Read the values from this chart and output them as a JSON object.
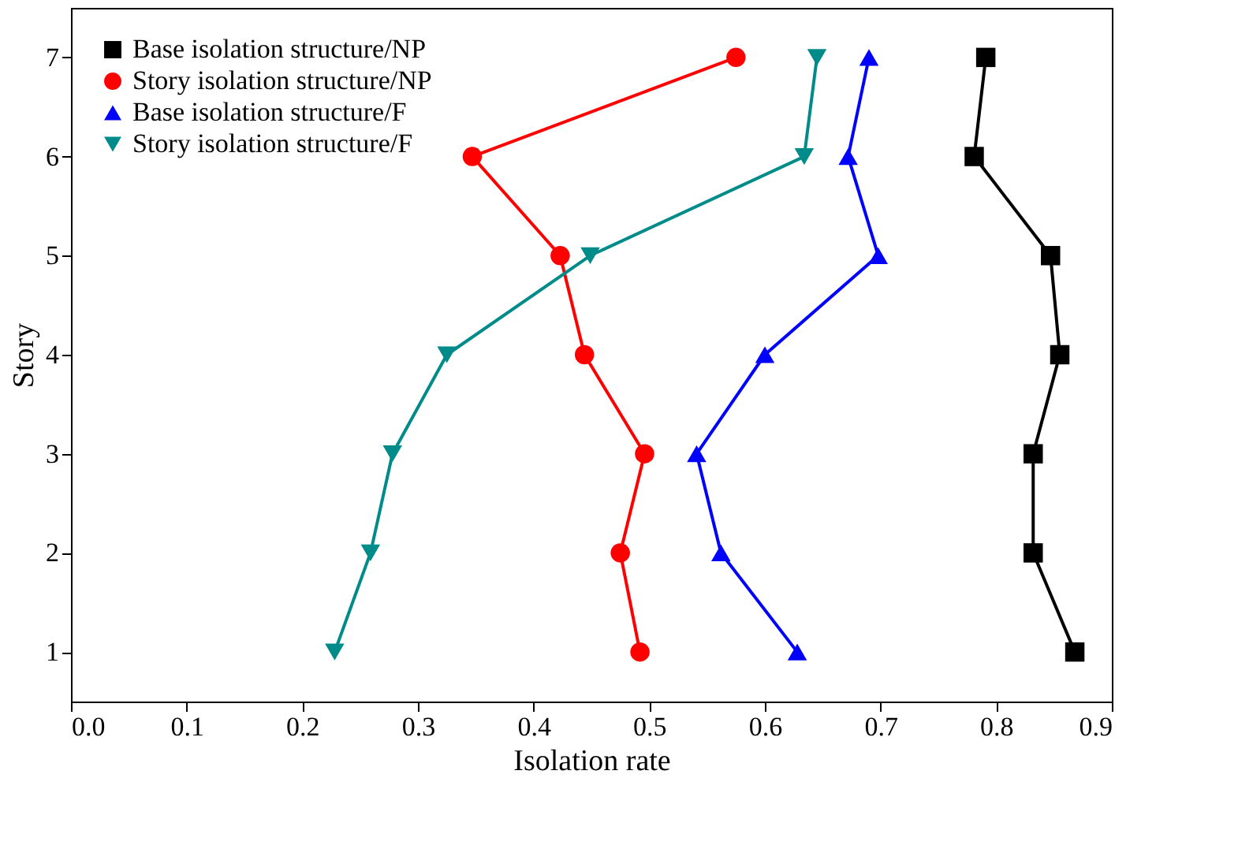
{
  "chart_data": {
    "type": "line",
    "xlabel": "Isolation rate",
    "ylabel": "Story",
    "series": [
      {
        "name": "Base isolation structure/NP",
        "color": "#000000",
        "marker": "square",
        "x": [
          0.868,
          0.832,
          0.832,
          0.855,
          0.847,
          0.781,
          0.791
        ],
        "values": [
          1,
          2,
          3,
          4,
          5,
          6,
          7
        ]
      },
      {
        "name": "Story isolation structure/NP",
        "color": "#ff0000",
        "marker": "circle",
        "x": [
          0.492,
          0.475,
          0.496,
          0.444,
          0.423,
          0.347,
          0.575
        ],
        "values": [
          1,
          2,
          3,
          4,
          5,
          6,
          7
        ]
      },
      {
        "name": "Base isolation structure/F",
        "color": "#0000ff",
        "marker": "triangle",
        "x": [
          0.628,
          0.562,
          0.541,
          0.6,
          0.698,
          0.672,
          0.69
        ],
        "values": [
          1,
          2,
          3,
          4,
          5,
          6,
          7
        ]
      },
      {
        "name": "Story isolation structure/F",
        "color": "#008b8b",
        "marker": "triangle-down",
        "x": [
          0.228,
          0.259,
          0.278,
          0.325,
          0.449,
          0.634,
          0.645
        ],
        "values": [
          1,
          2,
          3,
          4,
          5,
          6,
          7
        ]
      }
    ],
    "xlim": [
      0,
      0.9
    ],
    "xticks": [
      {
        "value": 0,
        "label": "0.0"
      },
      0.1,
      0.2,
      0.3,
      0.4,
      0.5,
      0.6,
      0.7,
      0.8,
      0.9
    ],
    "ylim": [
      0.5,
      7.5
    ],
    "yticks": [
      {
        "value": 1,
        "label": "1"
      },
      {
        "value": 2,
        "label": "2"
      },
      {
        "value": 3,
        "label": "3"
      },
      {
        "value": 4,
        "label": "4"
      },
      {
        "value": 5,
        "label": "5"
      },
      {
        "value": 6,
        "label": "6"
      },
      {
        "value": 7,
        "label": "7"
      }
    ],
    "grid": false,
    "legend": "top left",
    "line_style": "solid"
  }
}
